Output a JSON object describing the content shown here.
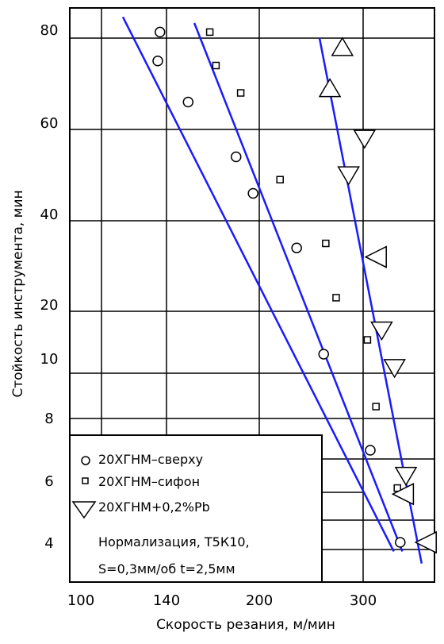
{
  "chart_data": {
    "type": "scatter",
    "xlabel": "Скорость резания, м/мин",
    "ylabel": "Стойкость инструмента, мин",
    "x_ticks": [
      "100",
      "140",
      "200",
      "300"
    ],
    "y_ticks": [
      "80",
      "60",
      "40",
      "20",
      "10",
      "8",
      "6",
      "4"
    ],
    "grid": true,
    "legend_position": "bottom-left",
    "series": [
      {
        "name": "20ХГНМ–сверху",
        "marker": "circle",
        "points": [
          [
            137,
            82
          ],
          [
            136,
            75
          ],
          [
            154,
            66
          ],
          [
            185,
            54
          ],
          [
            196,
            46
          ],
          [
            236,
            34
          ],
          [
            262,
            11
          ],
          [
            310,
            7
          ],
          [
            352,
            4
          ]
        ]
      },
      {
        "name": "20ХГНМ–сифон",
        "marker": "square",
        "points": [
          [
            168,
            82
          ],
          [
            172,
            74
          ],
          [
            188,
            68
          ],
          [
            220,
            49
          ],
          [
            264,
            35
          ],
          [
            274,
            23
          ],
          [
            306,
            14
          ],
          [
            318,
            8.4
          ],
          [
            348,
            5.8
          ]
        ]
      },
      {
        "name": "20ХГНМ+0,2%Рb",
        "marker": "triangle",
        "points": [
          [
            280,
            78
          ],
          [
            268,
            69
          ],
          [
            302,
            58
          ],
          [
            286,
            50
          ],
          [
            318,
            32
          ],
          [
            326,
            16
          ],
          [
            344,
            9.7
          ],
          [
            360,
            6.2
          ],
          [
            356,
            5.6
          ],
          [
            388,
            4
          ]
        ]
      }
    ],
    "trend_lines": [
      {
        "from": [
          120,
          87
        ],
        "to": [
          343,
          3.7
        ]
      },
      {
        "from": [
          158,
          85
        ],
        "to": [
          355,
          3.7
        ]
      },
      {
        "from": [
          258,
          80
        ],
        "to": [
          382,
          3.3
        ]
      }
    ],
    "annotations": [
      "Нормализация, Т5К10,",
      "S=0,3мм/об t=2,5мм"
    ],
    "colors": {
      "lines": "#1a1aff",
      "markers": "#000000",
      "grid": "#000000"
    }
  }
}
